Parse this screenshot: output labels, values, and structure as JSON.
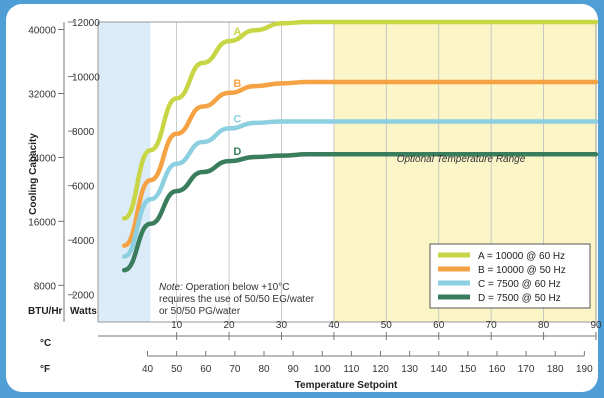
{
  "chart_data": {
    "type": "line",
    "title": "",
    "xlabel": "Temperature Setpoint",
    "ylabel": "Cooling Capacity",
    "x_unit_c": "°C",
    "x_unit_f": "°F",
    "y_unit_btu": "BTU/Hr",
    "y_unit_watts": "Watts",
    "xlim_c": [
      -5,
      90
    ],
    "ylim_watts": [
      1000,
      12000
    ],
    "celsius_ticks": [
      10,
      20,
      30,
      40,
      50,
      60,
      70,
      80,
      90
    ],
    "fahrenheit_ticks": [
      40,
      50,
      60,
      70,
      80,
      90,
      100,
      110,
      120,
      130,
      140,
      150,
      160,
      170,
      180,
      190
    ],
    "watts_ticks": [
      2000,
      4000,
      6000,
      8000,
      10000,
      12000
    ],
    "btu_ticks": [
      8000,
      16000,
      24000,
      32000,
      40000
    ],
    "grid": true,
    "low_range_max_c": 5,
    "optional_range_min_c": 40,
    "optional_range_label": "Optional Temperature Range",
    "note_italic": "Note:",
    "note_lines": [
      " Operation below +10°C",
      "requires the use of 50/50 EG/water",
      "or 50/50 PG/water"
    ],
    "legend_position": "bottom-right",
    "series": [
      {
        "name": "A",
        "legend": "A = 10000 @ 60 Hz",
        "color": "#c8d645",
        "x": [
          0,
          5,
          10,
          15,
          20,
          25,
          30,
          35,
          40,
          90
        ],
        "y": [
          4800,
          7300,
          9200,
          10500,
          11300,
          11700,
          11950,
          12000,
          12000,
          12000
        ]
      },
      {
        "name": "B",
        "legend": "B = 10000 @ 50 Hz",
        "color": "#f4a243",
        "x": [
          0,
          5,
          10,
          15,
          20,
          25,
          30,
          35,
          40,
          90
        ],
        "y": [
          3800,
          6200,
          7900,
          8900,
          9400,
          9650,
          9750,
          9800,
          9800,
          9800
        ]
      },
      {
        "name": "C",
        "legend": "C = 7500 @ 60 Hz",
        "color": "#8ccfe0",
        "x": [
          0,
          5,
          10,
          15,
          20,
          25,
          30,
          35,
          40,
          90
        ],
        "y": [
          3400,
          5500,
          6800,
          7600,
          8100,
          8300,
          8350,
          8350,
          8350,
          8350
        ]
      },
      {
        "name": "D",
        "legend": "D = 7500 @ 50 Hz",
        "color": "#3a7d5c",
        "x": [
          0,
          5,
          10,
          15,
          20,
          25,
          30,
          35,
          40,
          90
        ],
        "y": [
          2900,
          4600,
          5800,
          6500,
          6900,
          7050,
          7100,
          7150,
          7150,
          7150
        ]
      }
    ]
  }
}
